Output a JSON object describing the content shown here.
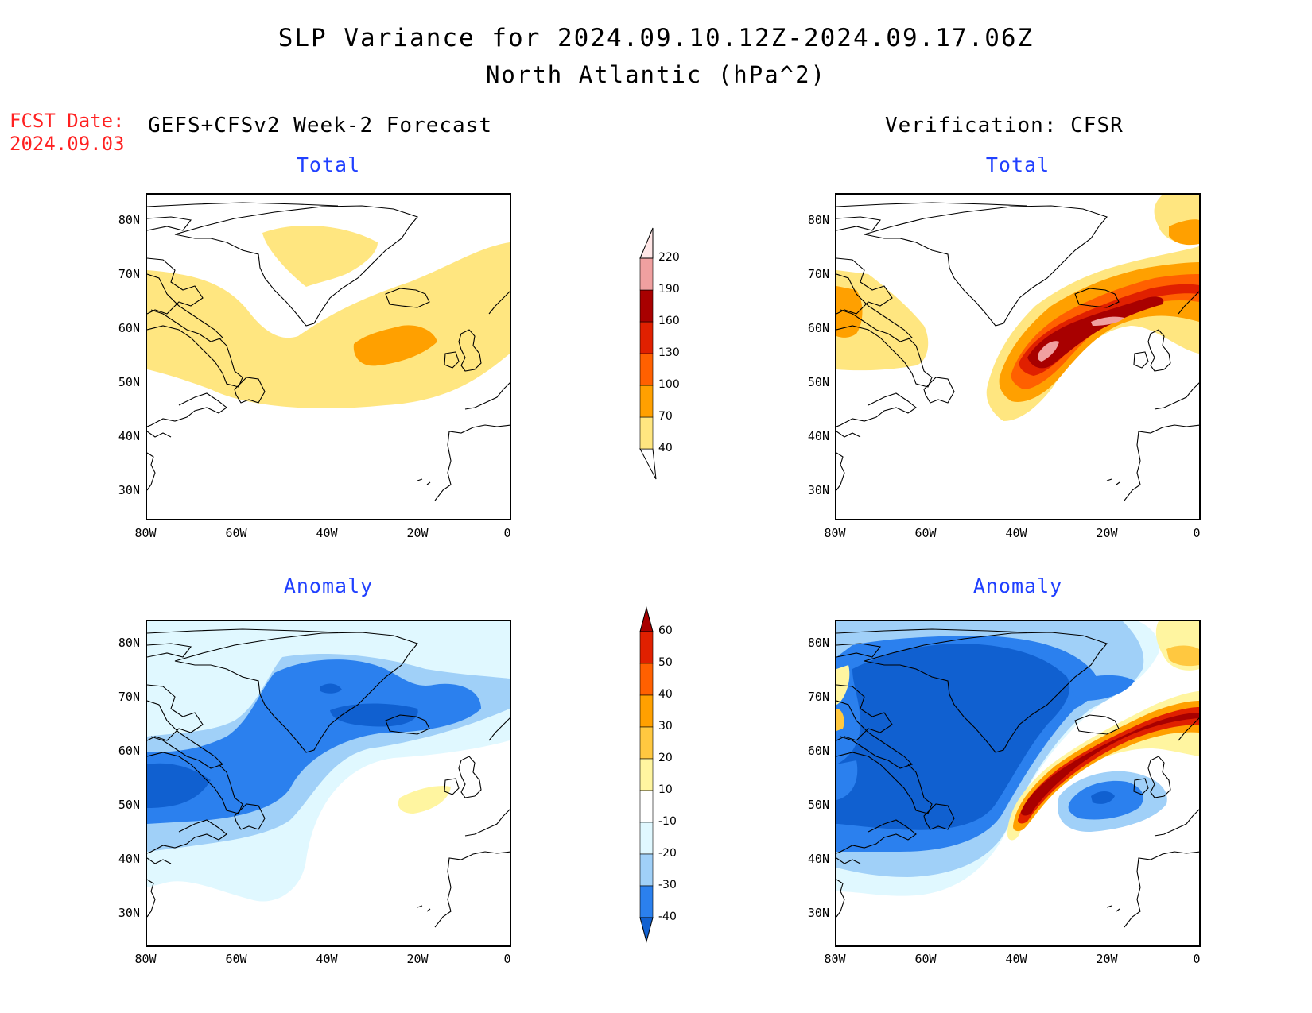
{
  "header": {
    "title": "SLP Variance for 2024.09.10.12Z-2024.09.17.06Z",
    "subtitle": "North Atlantic (hPa^2)",
    "fcst_label": "FCST Date:",
    "fcst_date": "2024.09.03"
  },
  "columns": {
    "left": "GEFS+CFSv2 Week-2 Forecast",
    "right": "Verification: CFSR"
  },
  "panels": {
    "fc_total": {
      "title": "Total"
    },
    "vf_total": {
      "title": "Total"
    },
    "fc_anom": {
      "title": "Anomaly"
    },
    "vf_anom": {
      "title": "Anomaly"
    }
  },
  "axes": {
    "lat_labels": [
      "80N",
      "70N",
      "60N",
      "50N",
      "40N",
      "30N"
    ],
    "lon_labels": [
      "80W",
      "60W",
      "40W",
      "20W",
      "0"
    ]
  },
  "colorbar_total": {
    "levels": [
      "40",
      "70",
      "100",
      "130",
      "160",
      "190",
      "220"
    ],
    "colors": [
      "#ffe680",
      "#ffa000",
      "#ff6000",
      "#e02000",
      "#a80000",
      "#f0a0a0",
      "#ffe6e6"
    ]
  },
  "colorbar_anom": {
    "levels": [
      "-40",
      "-30",
      "-20",
      "-10",
      "10",
      "20",
      "30",
      "40",
      "50",
      "60"
    ],
    "colors": [
      "#1060d0",
      "#2b80ee",
      "#a0d0f8",
      "#e0f8ff",
      "#ffffff",
      "#fff5a0",
      "#ffc840",
      "#ffa000",
      "#ff6000",
      "#e02000",
      "#a80000"
    ]
  }
}
